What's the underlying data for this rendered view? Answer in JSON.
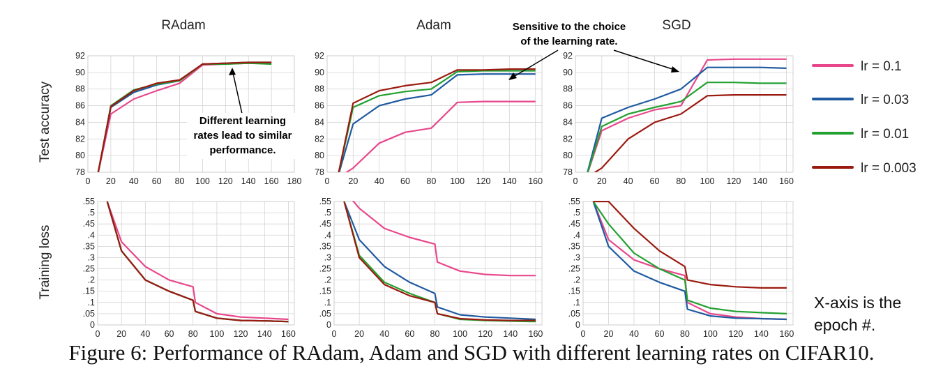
{
  "caption": "Figure 6: Performance of RAdam, Adam and SGD with different learning rates on CIFAR10.",
  "x_axis_note": [
    "X-axis is the",
    "epoch #."
  ],
  "annotations": {
    "radam": [
      "Different learning",
      "rates lead to similar",
      "performance."
    ],
    "adam": [
      "Sensitive to the choice",
      "of the learning rate."
    ]
  },
  "legend": [
    {
      "label": "lr = 0.1",
      "color": "#e8478b"
    },
    {
      "label": "lr = 0.03",
      "color": "#1f5aa0"
    },
    {
      "label": "lr = 0.01",
      "color": "#22a030"
    },
    {
      "label": "lr = 0.003",
      "color": "#9b1a10"
    }
  ],
  "row_labels": {
    "top": "Test accuracy",
    "bottom": "Training loss"
  },
  "chart_data": [
    {
      "type": "line",
      "title": "RAdam",
      "ylabel": "Test accuracy",
      "xlim": [
        0,
        180
      ],
      "ylim": [
        78,
        92
      ],
      "x": [
        0,
        20,
        40,
        60,
        80,
        100,
        120,
        140,
        160
      ],
      "series": [
        {
          "name": "lr = 0.1",
          "values": [
            null,
            85.0,
            86.8,
            87.8,
            88.7,
            90.9,
            91.0,
            91.1,
            91.1
          ]
        },
        {
          "name": "lr = 0.03",
          "values": [
            null,
            85.8,
            87.6,
            88.5,
            89.0,
            91.0,
            91.1,
            91.2,
            91.2
          ]
        },
        {
          "name": "lr = 0.01",
          "values": [
            null,
            86.0,
            87.9,
            88.6,
            89.0,
            91.0,
            91.0,
            91.1,
            91.0
          ]
        },
        {
          "name": "lr = 0.003",
          "values": [
            null,
            85.9,
            87.8,
            88.7,
            89.1,
            91.0,
            91.1,
            91.2,
            91.2
          ]
        }
      ]
    },
    {
      "type": "line",
      "title": "Adam",
      "ylabel": "Test accuracy",
      "xlim": [
        0,
        165
      ],
      "ylim": [
        78,
        92
      ],
      "x": [
        0,
        20,
        40,
        60,
        80,
        100,
        120,
        140,
        160
      ],
      "series": [
        {
          "name": "lr = 0.1",
          "values": [
            null,
            78.5,
            81.5,
            82.8,
            83.3,
            86.4,
            86.5,
            86.5,
            86.5
          ]
        },
        {
          "name": "lr = 0.03",
          "values": [
            null,
            83.8,
            86.0,
            86.8,
            87.3,
            89.7,
            89.8,
            89.8,
            89.8
          ]
        },
        {
          "name": "lr = 0.01",
          "values": [
            null,
            85.8,
            87.2,
            87.7,
            88.0,
            90.1,
            90.2,
            90.2,
            90.2
          ]
        },
        {
          "name": "lr = 0.003",
          "values": [
            null,
            86.3,
            87.8,
            88.4,
            88.8,
            90.3,
            90.3,
            90.4,
            90.4
          ]
        }
      ]
    },
    {
      "type": "line",
      "title": "SGD",
      "ylabel": "Test accuracy",
      "xlim": [
        0,
        165
      ],
      "ylim": [
        78,
        92
      ],
      "x": [
        0,
        20,
        40,
        60,
        80,
        100,
        120,
        140,
        160
      ],
      "series": [
        {
          "name": "lr = 0.1",
          "values": [
            null,
            83.0,
            84.5,
            85.5,
            86.0,
            91.5,
            91.6,
            91.6,
            91.6
          ]
        },
        {
          "name": "lr = 0.03",
          "values": [
            null,
            84.5,
            85.8,
            86.8,
            88.0,
            90.6,
            90.6,
            90.6,
            90.5
          ]
        },
        {
          "name": "lr = 0.01",
          "values": [
            null,
            83.5,
            85.0,
            85.8,
            86.5,
            88.8,
            88.8,
            88.7,
            88.7
          ]
        },
        {
          "name": "lr = 0.003",
          "values": [
            null,
            78.5,
            82.0,
            84.0,
            85.0,
            87.2,
            87.3,
            87.3,
            87.3
          ]
        }
      ]
    },
    {
      "type": "line",
      "title": "",
      "ylabel": "Training loss",
      "xlim": [
        0,
        165
      ],
      "ylim": [
        0,
        0.55
      ],
      "x": [
        8,
        20,
        40,
        60,
        80,
        82,
        100,
        120,
        140,
        160
      ],
      "series": [
        {
          "name": "lr = 0.1",
          "values": [
            0.55,
            0.37,
            0.26,
            0.2,
            0.17,
            0.1,
            0.05,
            0.035,
            0.03,
            0.025
          ]
        },
        {
          "name": "lr = 0.03",
          "values": [
            0.55,
            0.33,
            0.2,
            0.15,
            0.11,
            0.06,
            0.03,
            0.02,
            0.018,
            0.015
          ]
        },
        {
          "name": "lr = 0.01",
          "values": [
            0.55,
            0.33,
            0.2,
            0.15,
            0.11,
            0.06,
            0.03,
            0.02,
            0.018,
            0.015
          ]
        },
        {
          "name": "lr = 0.003",
          "values": [
            0.55,
            0.33,
            0.2,
            0.15,
            0.11,
            0.06,
            0.03,
            0.02,
            0.018,
            0.015
          ]
        }
      ]
    },
    {
      "type": "line",
      "title": "",
      "ylabel": "Training loss",
      "xlim": [
        0,
        165
      ],
      "ylim": [
        0,
        0.55
      ],
      "x": [
        8,
        20,
        40,
        60,
        80,
        82,
        100,
        120,
        140,
        160
      ],
      "series": [
        {
          "name": "lr = 0.1",
          "values": [
            0.6,
            0.52,
            0.43,
            0.39,
            0.36,
            0.28,
            0.24,
            0.225,
            0.22,
            0.22
          ]
        },
        {
          "name": "lr = 0.03",
          "values": [
            0.55,
            0.38,
            0.26,
            0.19,
            0.14,
            0.08,
            0.045,
            0.035,
            0.03,
            0.025
          ]
        },
        {
          "name": "lr = 0.01",
          "values": [
            0.55,
            0.31,
            0.19,
            0.14,
            0.1,
            0.05,
            0.025,
            0.02,
            0.017,
            0.015
          ]
        },
        {
          "name": "lr = 0.003",
          "values": [
            0.55,
            0.3,
            0.18,
            0.13,
            0.1,
            0.05,
            0.028,
            0.022,
            0.02,
            0.02
          ]
        }
      ]
    },
    {
      "type": "line",
      "title": "",
      "ylabel": "Training loss",
      "xlim": [
        0,
        165
      ],
      "ylim": [
        0,
        0.55
      ],
      "x": [
        8,
        20,
        40,
        60,
        80,
        82,
        100,
        120,
        140,
        160
      ],
      "series": [
        {
          "name": "lr = 0.1",
          "values": [
            0.55,
            0.38,
            0.29,
            0.25,
            0.22,
            0.1,
            0.05,
            0.035,
            0.028,
            0.025
          ]
        },
        {
          "name": "lr = 0.03",
          "values": [
            0.55,
            0.35,
            0.24,
            0.19,
            0.15,
            0.07,
            0.04,
            0.03,
            0.028,
            0.025
          ]
        },
        {
          "name": "lr = 0.01",
          "values": [
            0.55,
            0.45,
            0.32,
            0.25,
            0.2,
            0.11,
            0.075,
            0.06,
            0.055,
            0.05
          ]
        },
        {
          "name": "lr = 0.003",
          "values": [
            0.55,
            0.55,
            0.43,
            0.33,
            0.26,
            0.2,
            0.18,
            0.17,
            0.165,
            0.165
          ]
        }
      ]
    }
  ]
}
